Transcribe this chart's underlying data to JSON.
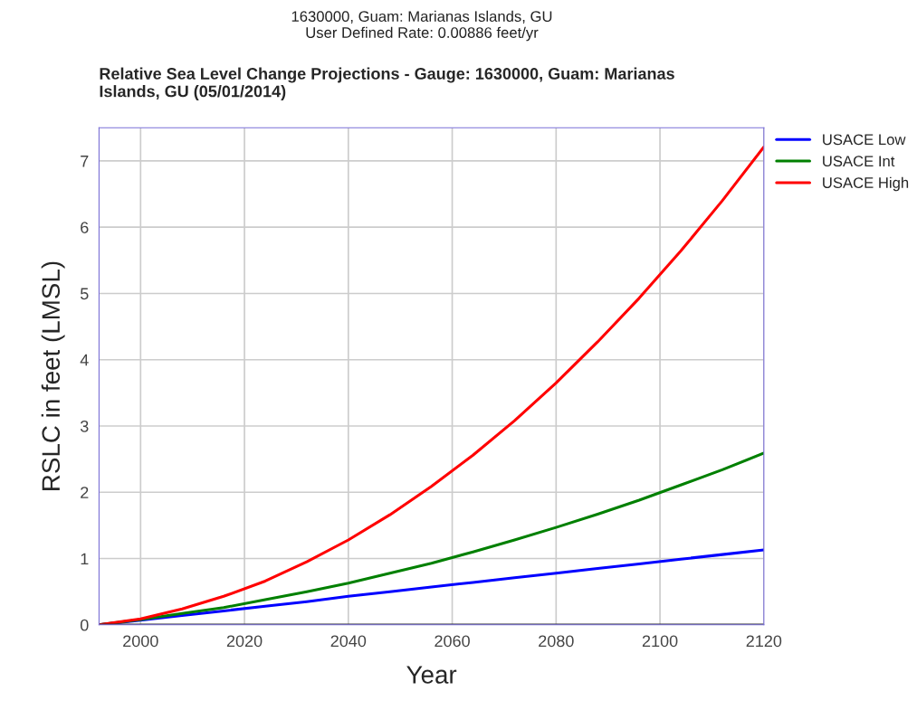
{
  "chart_data": {
    "type": "line",
    "subtitle": "1630000, Guam: Marianas Islands, GU\nUser Defined Rate: 0.00886 feet/yr",
    "title": "Relative Sea Level Change Projections - Gauge: 1630000, Guam: Marianas\nIslands, GU (05/01/2014)",
    "xlabel": "Year",
    "ylabel": "RSLC in feet (LMSL)",
    "x": [
      1992,
      2000,
      2008,
      2016,
      2024,
      2032,
      2040,
      2048,
      2056,
      2064,
      2072,
      2080,
      2088,
      2096,
      2104,
      2112,
      2120
    ],
    "series": [
      {
        "name": "USACE Low",
        "color": "#0000ff",
        "values": [
          0,
          0.07,
          0.14,
          0.21,
          0.28,
          0.35,
          0.43,
          0.5,
          0.57,
          0.64,
          0.71,
          0.78,
          0.85,
          0.92,
          0.99,
          1.06,
          1.13
        ]
      },
      {
        "name": "USACE Int",
        "color": "#008000",
        "values": [
          0,
          0.08,
          0.17,
          0.26,
          0.38,
          0.5,
          0.63,
          0.78,
          0.93,
          1.1,
          1.28,
          1.47,
          1.67,
          1.88,
          2.11,
          2.34,
          2.59
        ]
      },
      {
        "name": "USACE High",
        "color": "#ff0000",
        "values": [
          0,
          0.09,
          0.24,
          0.43,
          0.66,
          0.95,
          1.28,
          1.66,
          2.09,
          2.56,
          3.08,
          3.65,
          4.27,
          4.93,
          5.64,
          6.4,
          7.21
        ]
      }
    ],
    "xlim": [
      1992,
      2120
    ],
    "ylim": [
      0,
      7.5
    ],
    "xticks": [
      2000,
      2020,
      2040,
      2060,
      2080,
      2100,
      2120
    ],
    "yticks": [
      0,
      1,
      2,
      3,
      4,
      5,
      6,
      7
    ],
    "grid": true,
    "legend": "top right",
    "marker": "none",
    "line_style": "solid"
  }
}
